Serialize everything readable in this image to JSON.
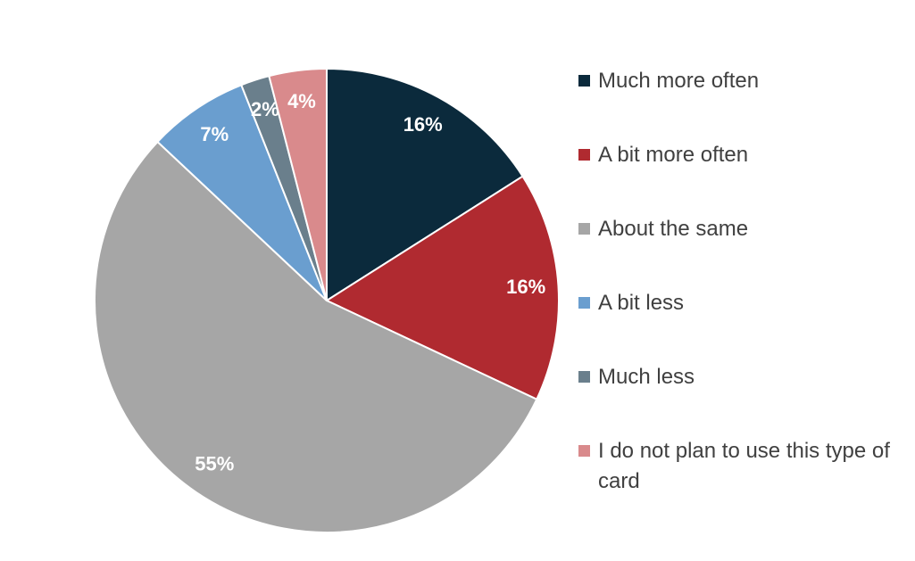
{
  "chart_data": {
    "type": "pie",
    "categories": [
      "Much more often",
      "A bit more often",
      "About the same",
      "A bit less",
      "Much less",
      "I do not plan to use this type of card"
    ],
    "values": [
      16,
      16,
      55,
      7,
      2,
      4
    ],
    "value_labels": [
      "16%",
      "16%",
      "55%",
      "7%",
      "2%",
      "4%"
    ],
    "colors": [
      "#0b2a3c",
      "#b02a30",
      "#a6a6a6",
      "#6a9ecf",
      "#6a7f8c",
      "#d98a8c"
    ],
    "legend": "right"
  }
}
